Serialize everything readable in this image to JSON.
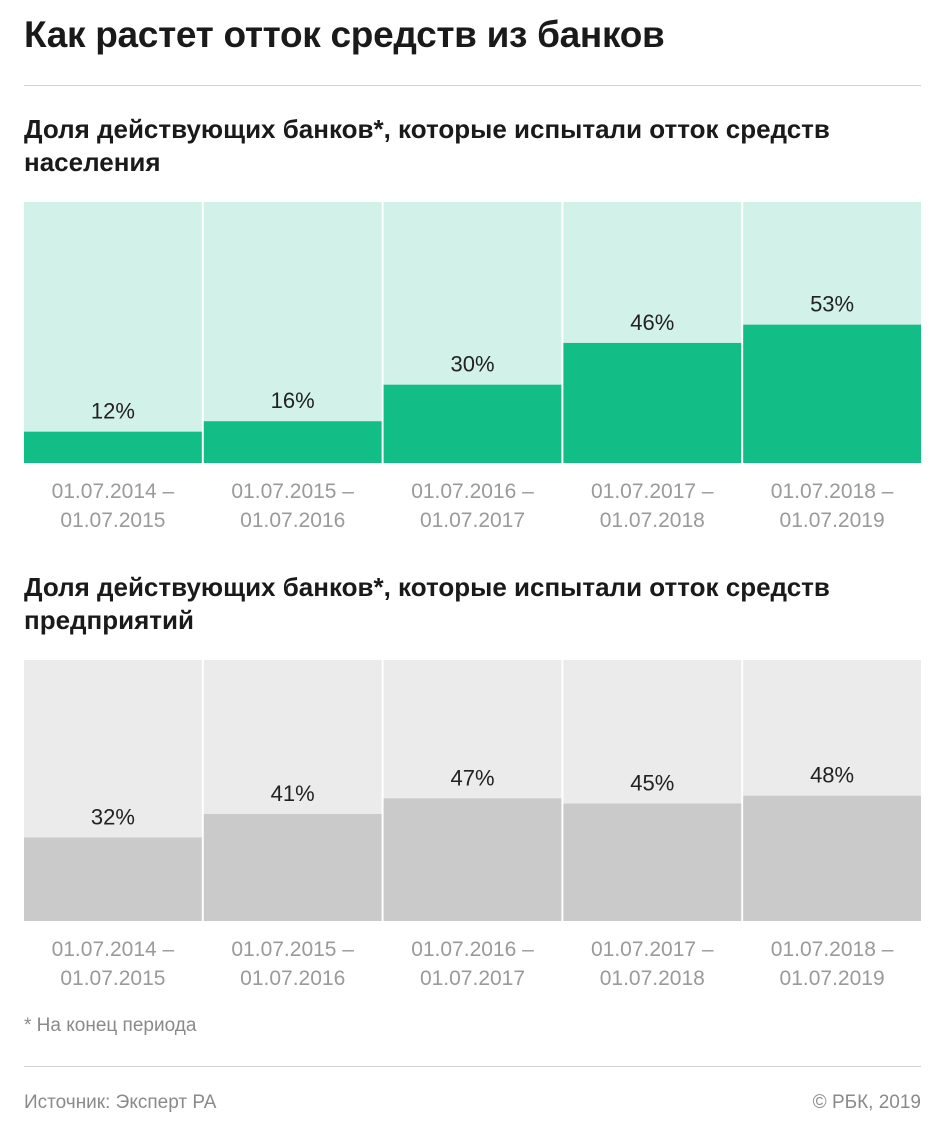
{
  "title": "Как растет отток средств из банков",
  "chart_data": [
    {
      "type": "bar",
      "title": "Доля действующих банков*, которые испытали отток средств населения",
      "categories": [
        [
          "01.07.2014 –",
          "01.07.2015"
        ],
        [
          "01.07.2015 –",
          "01.07.2016"
        ],
        [
          "01.07.2016 –",
          "01.07.2017"
        ],
        [
          "01.07.2017 –",
          "01.07.2018"
        ],
        [
          "01.07.2018 –",
          "01.07.2019"
        ]
      ],
      "values": [
        12,
        16,
        30,
        46,
        53
      ],
      "value_labels": [
        "12%",
        "16%",
        "30%",
        "46%",
        "53%"
      ],
      "ylim": [
        0,
        100
      ],
      "colors": {
        "bar": "#12bd86",
        "background": "#d2f1e8"
      }
    },
    {
      "type": "bar",
      "title": "Доля действующих банков*, которые испытали отток средств предприятий",
      "categories": [
        [
          "01.07.2014 –",
          "01.07.2015"
        ],
        [
          "01.07.2015 –",
          "01.07.2016"
        ],
        [
          "01.07.2016 –",
          "01.07.2017"
        ],
        [
          "01.07.2017 –",
          "01.07.2018"
        ],
        [
          "01.07.2018 –",
          "01.07.2019"
        ]
      ],
      "values": [
        32,
        41,
        47,
        45,
        48
      ],
      "value_labels": [
        "32%",
        "41%",
        "47%",
        "45%",
        "48%"
      ],
      "ylim": [
        0,
        100
      ],
      "colors": {
        "bar": "#cacaca",
        "background": "#ebebeb"
      }
    }
  ],
  "footnote": "* На конец периода",
  "source": "Источник: Эксперт РА",
  "copyright": "© РБК, 2019"
}
